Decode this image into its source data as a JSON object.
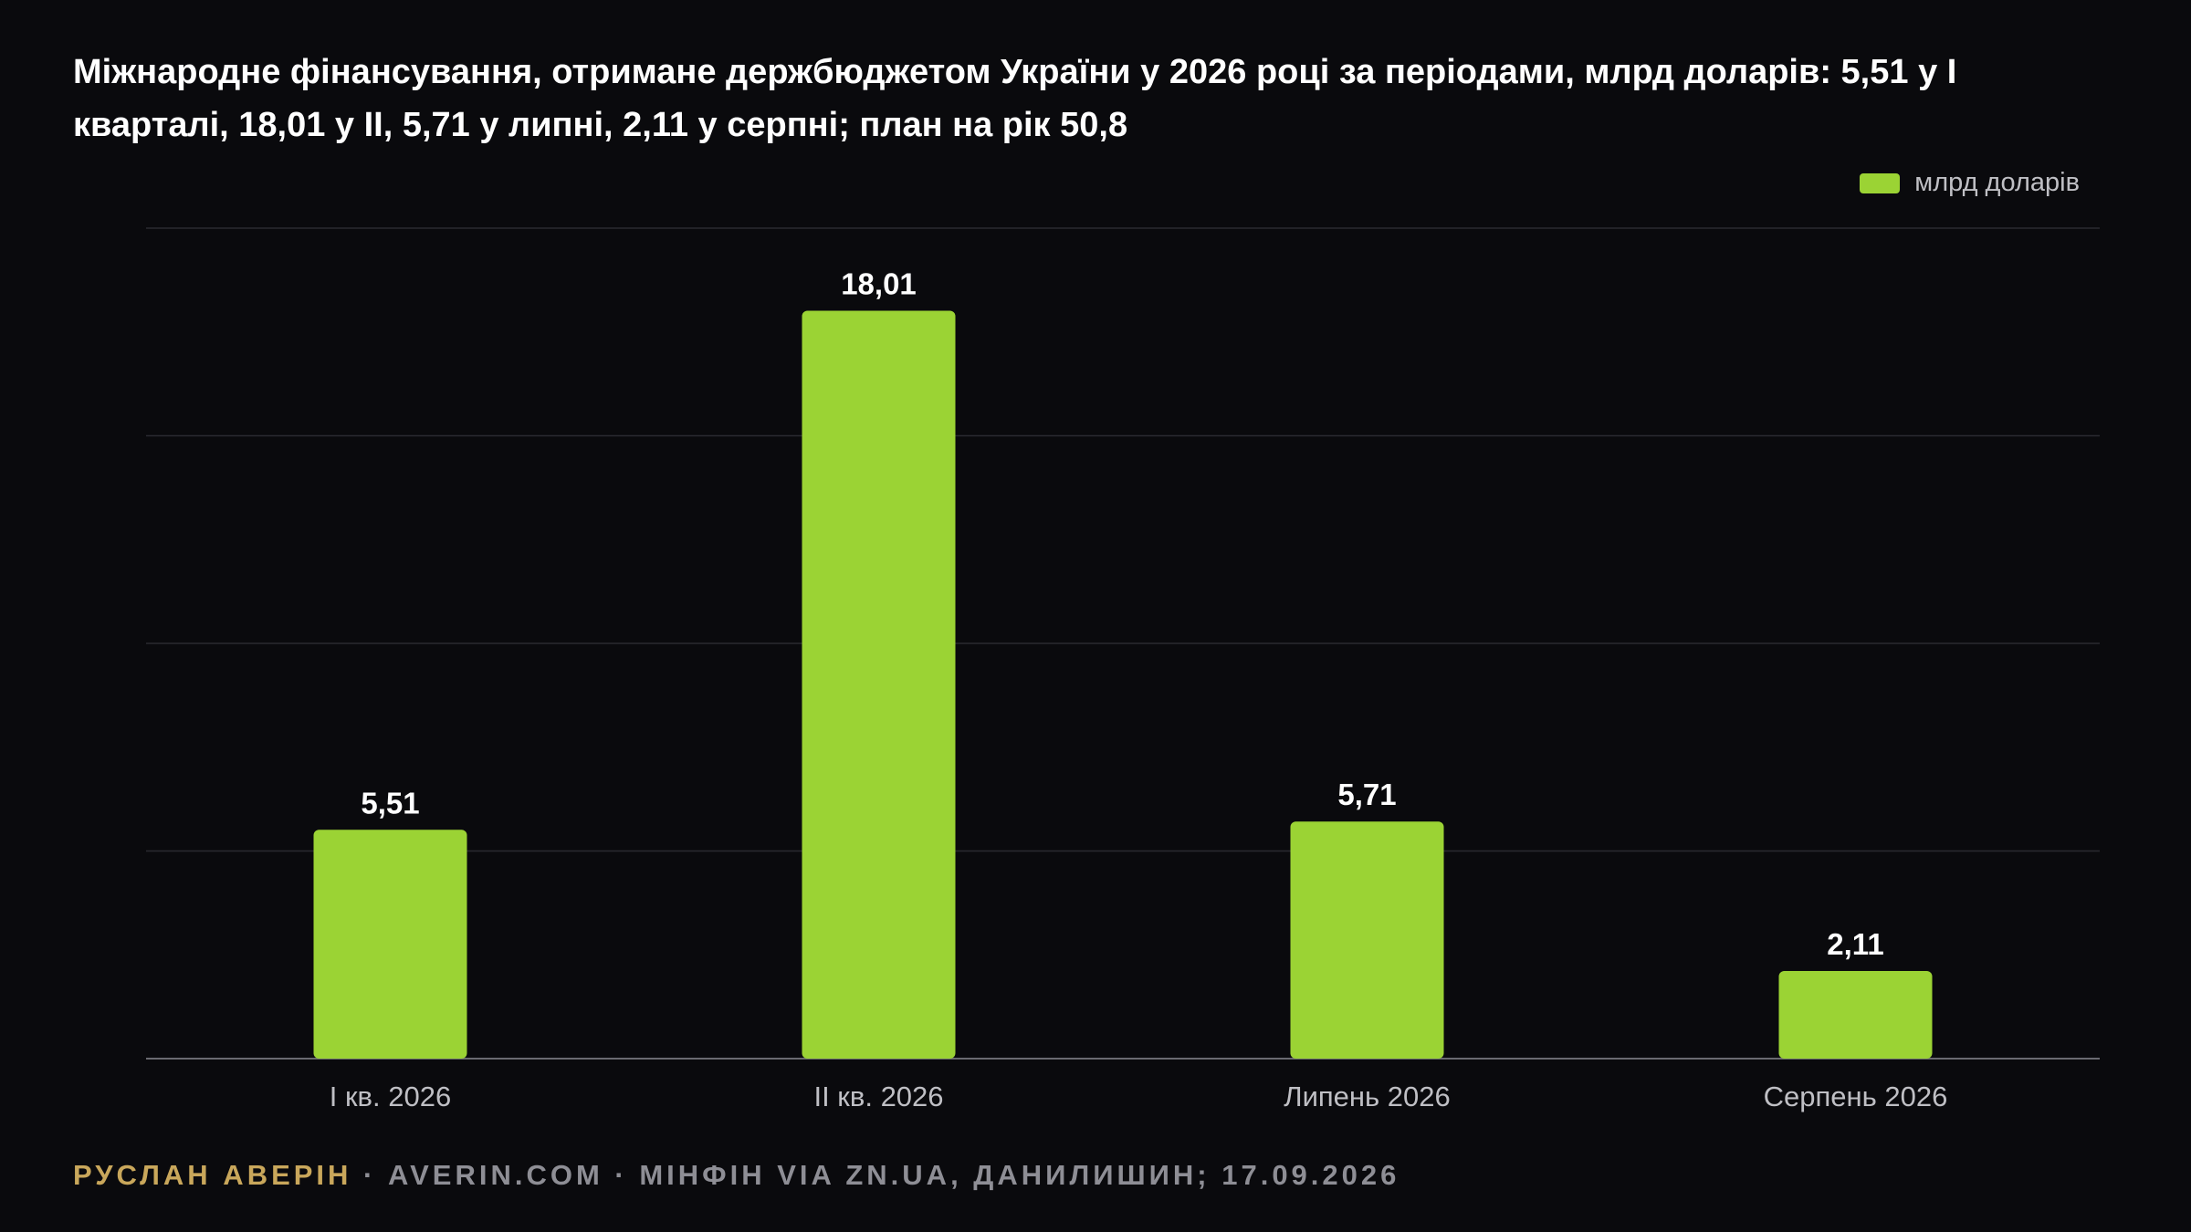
{
  "title": "Міжнародне фінансування, отримане держбюджетом України у 2026 році за періодами, млрд доларів: 5,51 у І кварталі, 18,01 у ІІ, 5,71 у липні, 2,11 у серпні; план на рік 50,8",
  "legend": {
    "label": "млрд доларів",
    "color": "#9bd334"
  },
  "footer": {
    "author": "РУСЛАН АВЕРІН",
    "sep1": " · ",
    "site": "AVERIN.COM",
    "sep2": " · ",
    "source": "МІНФІН VIA ZN.UA, ДАНИЛИШИН; 17.09.2026"
  },
  "colors": {
    "bar": "#9bd334",
    "grid": "#2a2a30",
    "axis": "#6a6a70",
    "background": "#0a0a0d"
  },
  "chart_data": {
    "type": "bar",
    "categories": [
      "І кв. 2026",
      "ІІ кв. 2026",
      "Липень 2026",
      "Серпень 2026"
    ],
    "series": [
      {
        "name": "млрд доларів",
        "values": [
          5.51,
          18.01,
          5.71,
          2.11
        ]
      }
    ],
    "value_labels": [
      "5,51",
      "18,01",
      "5,71",
      "2,11"
    ],
    "ylim": [
      0,
      20
    ],
    "yticks": [
      0,
      5,
      10,
      15,
      20
    ],
    "grid": true,
    "legend_position": "top-right"
  }
}
